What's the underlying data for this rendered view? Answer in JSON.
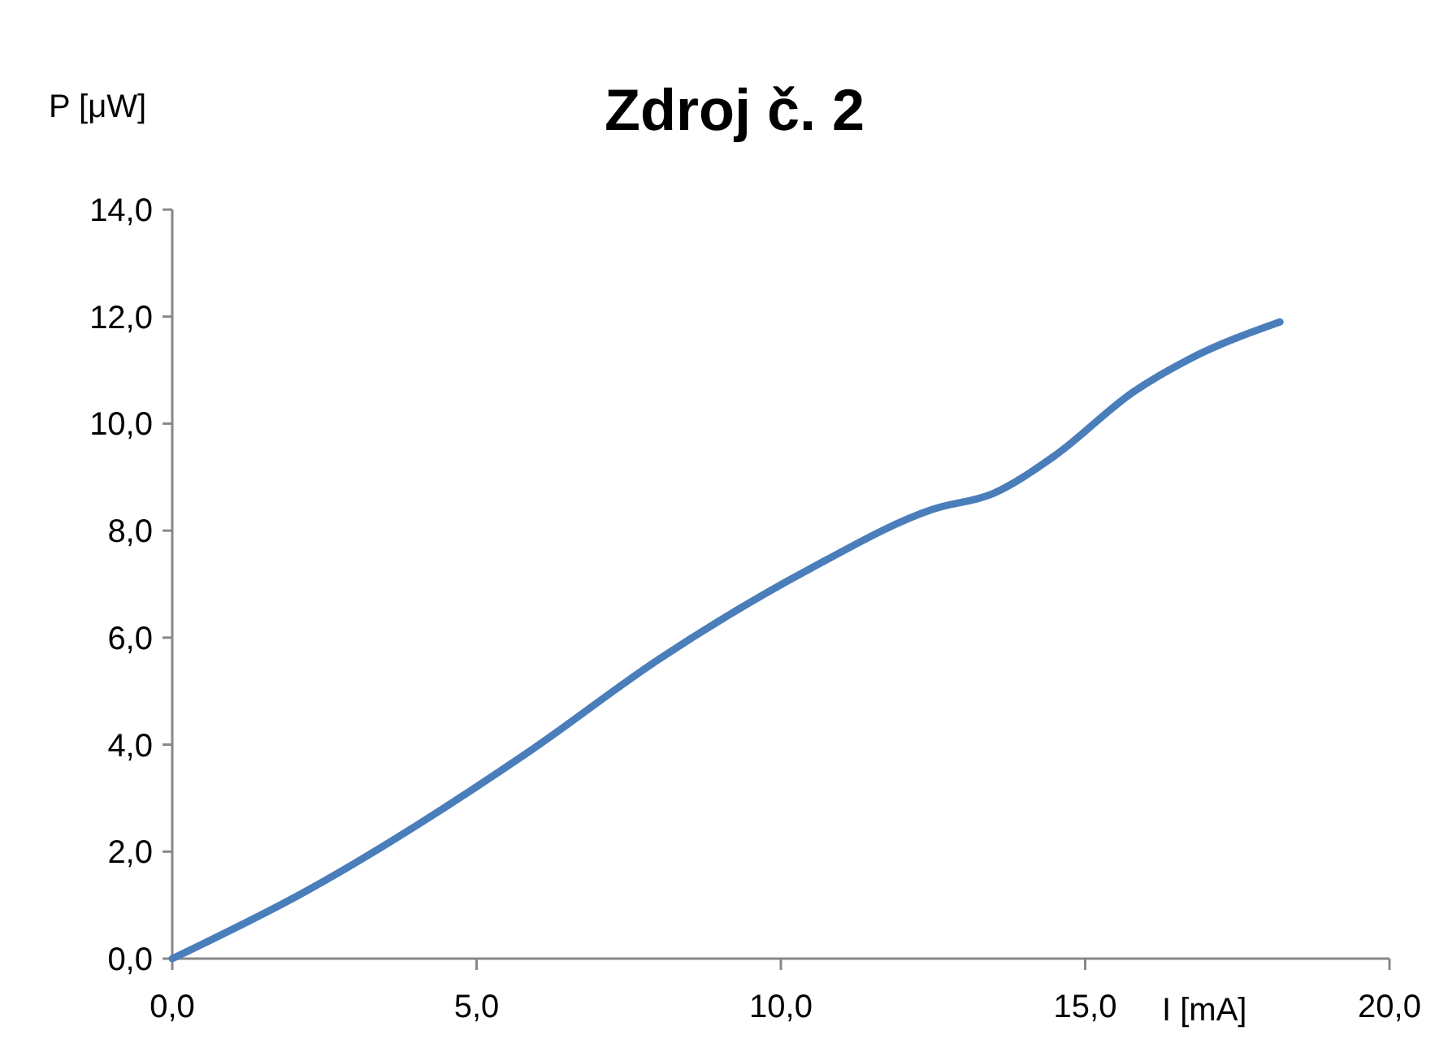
{
  "chart_data": {
    "type": "line",
    "title": "Zdroj č. 2",
    "xlabel": "I [mA]",
    "ylabel": "P [μW]",
    "xlim": [
      0,
      20
    ],
    "ylim": [
      0,
      14
    ],
    "xticks": [
      {
        "value": 0,
        "label": "0,0"
      },
      {
        "value": 5,
        "label": "5,0"
      },
      {
        "value": 10,
        "label": "10,0"
      },
      {
        "value": 15,
        "label": "15,0"
      },
      {
        "value": 20,
        "label": "20,0"
      }
    ],
    "yticks": [
      {
        "value": 0,
        "label": "0,0"
      },
      {
        "value": 2,
        "label": "2,0"
      },
      {
        "value": 4,
        "label": "4,0"
      },
      {
        "value": 6,
        "label": "6,0"
      },
      {
        "value": 8,
        "label": "8,0"
      },
      {
        "value": 10,
        "label": "10,0"
      },
      {
        "value": 12,
        "label": "12,0"
      },
      {
        "value": 14,
        "label": "14,0"
      }
    ],
    "grid": false,
    "marker": "none",
    "line_style": "solid",
    "series": [
      {
        "color": "#4a7ebb",
        "x": [
          0,
          2.1,
          5.9,
          8.0,
          10.5,
          12.5,
          13.5,
          14.5,
          15.8,
          16.7,
          18.2
        ],
        "values": [
          0,
          1.2,
          3.9,
          5.6,
          7.3,
          8.4,
          8.7,
          9.4,
          10.6,
          11.2,
          11.9
        ]
      }
    ]
  }
}
